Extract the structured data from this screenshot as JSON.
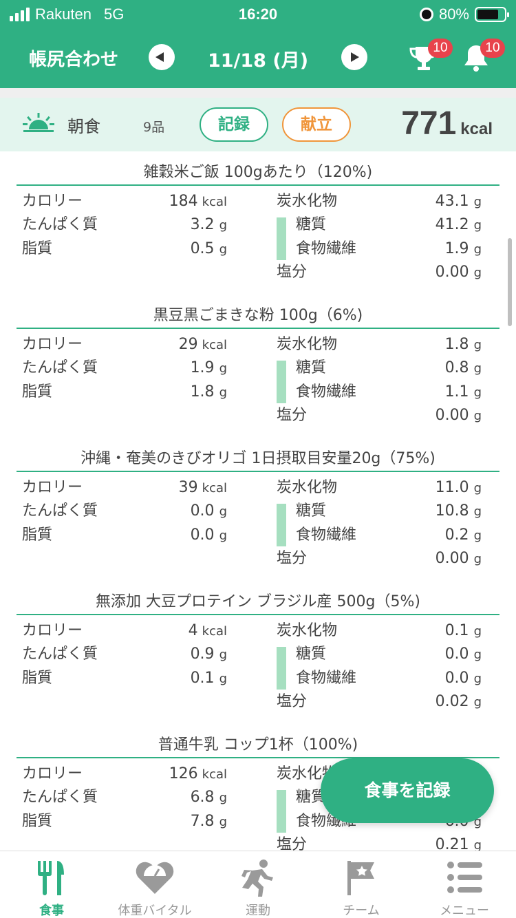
{
  "status_bar": {
    "carrier": "Rakuten",
    "network": "5G",
    "time": "16:20",
    "battery": "80%"
  },
  "header": {
    "title": "帳尻合わせ",
    "date": "11/18 (月)",
    "trophy_badge": "10",
    "bell_badge": "10"
  },
  "meal": {
    "name": "朝食",
    "count": "9品",
    "record_label": "記録",
    "menu_label": "献立",
    "kcal_value": "771",
    "kcal_unit": "kcal"
  },
  "labels": {
    "calorie": "カロリー",
    "protein": "たんぱく質",
    "fat": "脂質",
    "carbs": "炭水化物",
    "sugar": "糖質",
    "fiber": "食物繊維",
    "salt": "塩分",
    "kcal_unit": "kcal",
    "g_unit": "g"
  },
  "foods": [
    {
      "title": "雑穀米ご飯 100gあたり（120%)",
      "calorie": "184",
      "protein": "3.2",
      "fat": "0.5",
      "carbs": "43.1",
      "sugar": "41.2",
      "fiber": "1.9",
      "salt": "0.00"
    },
    {
      "title": "黒豆黒ごまきな粉 100g（6%)",
      "calorie": "29",
      "protein": "1.9",
      "fat": "1.8",
      "carbs": "1.8",
      "sugar": "0.8",
      "fiber": "1.1",
      "salt": "0.00"
    },
    {
      "title": "沖縄・奄美のきびオリゴ 1日摂取目安量20g（75%)",
      "calorie": "39",
      "protein": "0.0",
      "fat": "0.0",
      "carbs": "11.0",
      "sugar": "10.8",
      "fiber": "0.2",
      "salt": "0.00"
    },
    {
      "title": "無添加 大豆プロテイン ブラジル産 500g（5%)",
      "calorie": "4",
      "protein": "0.9",
      "fat": "0.1",
      "carbs": "0.1",
      "sugar": "0.0",
      "fiber": "0.0",
      "salt": "0.02"
    },
    {
      "title": "普通牛乳 コップ1杯（100%)",
      "calorie": "126",
      "protein": "6.8",
      "fat": "7.8",
      "carbs": "",
      "sugar": "",
      "fiber": "6.0",
      "salt": "0.21"
    }
  ],
  "fab_label": "食事を記録",
  "tabs": [
    {
      "label": "食事",
      "icon": "fork-knife-icon",
      "active": true
    },
    {
      "label": "体重バイタル",
      "icon": "heart-scale-icon",
      "active": false
    },
    {
      "label": "運動",
      "icon": "runner-icon",
      "active": false
    },
    {
      "label": "チーム",
      "icon": "flag-star-icon",
      "active": false
    },
    {
      "label": "メニュー",
      "icon": "list-menu-icon",
      "active": false
    }
  ],
  "colors": {
    "brand": "#2fb083",
    "accent_orange": "#f0953a",
    "badge_red": "#e8434c",
    "meal_bar_bg": "#e3f5ee",
    "sub_bar": "#a6dfc0"
  }
}
